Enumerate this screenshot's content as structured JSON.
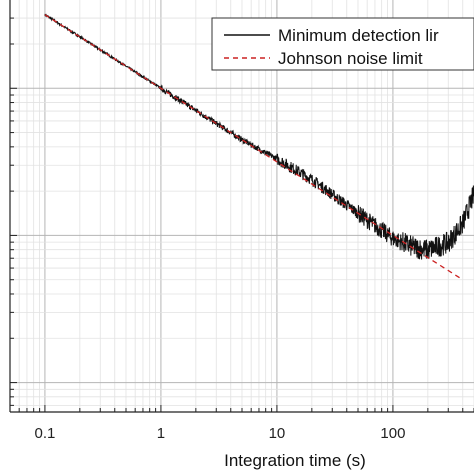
{
  "chart_data": {
    "type": "line",
    "xlabel": "Integration time (s)",
    "ylabel": "",
    "x_scale": "log",
    "y_scale": "log",
    "xlim": [
      0.05,
      500
    ],
    "ylim_decades": [
      -2.2,
      0.6
    ],
    "x_ticks": [
      {
        "value": 0.1,
        "label": "0.1"
      },
      {
        "value": 1,
        "label": "1"
      },
      {
        "value": 10,
        "label": "10"
      },
      {
        "value": 100,
        "label": "100"
      }
    ],
    "grid": true,
    "legend_position": "top-right",
    "series": [
      {
        "name": "Minimum detection limit",
        "color": "#111111",
        "style": "solid",
        "x": [
          0.1,
          0.2,
          0.5,
          1,
          2,
          5,
          10,
          20,
          50,
          100,
          150,
          200,
          300,
          400,
          500
        ],
        "y_log10": [
          0.5,
          0.35,
          0.15,
          0.0,
          -0.15,
          -0.35,
          -0.48,
          -0.62,
          -0.85,
          -1.02,
          -1.08,
          -1.1,
          -1.05,
          -0.92,
          -0.72
        ]
      },
      {
        "name": "Johnson noise limit",
        "color": "#cc2222",
        "style": "dashed",
        "x": [
          0.1,
          400
        ],
        "slope": -0.5,
        "y_log10_at_0_1": 0.5
      }
    ]
  },
  "legend": {
    "entries": [
      "Minimum detection lir",
      "Johnson noise limit"
    ]
  }
}
